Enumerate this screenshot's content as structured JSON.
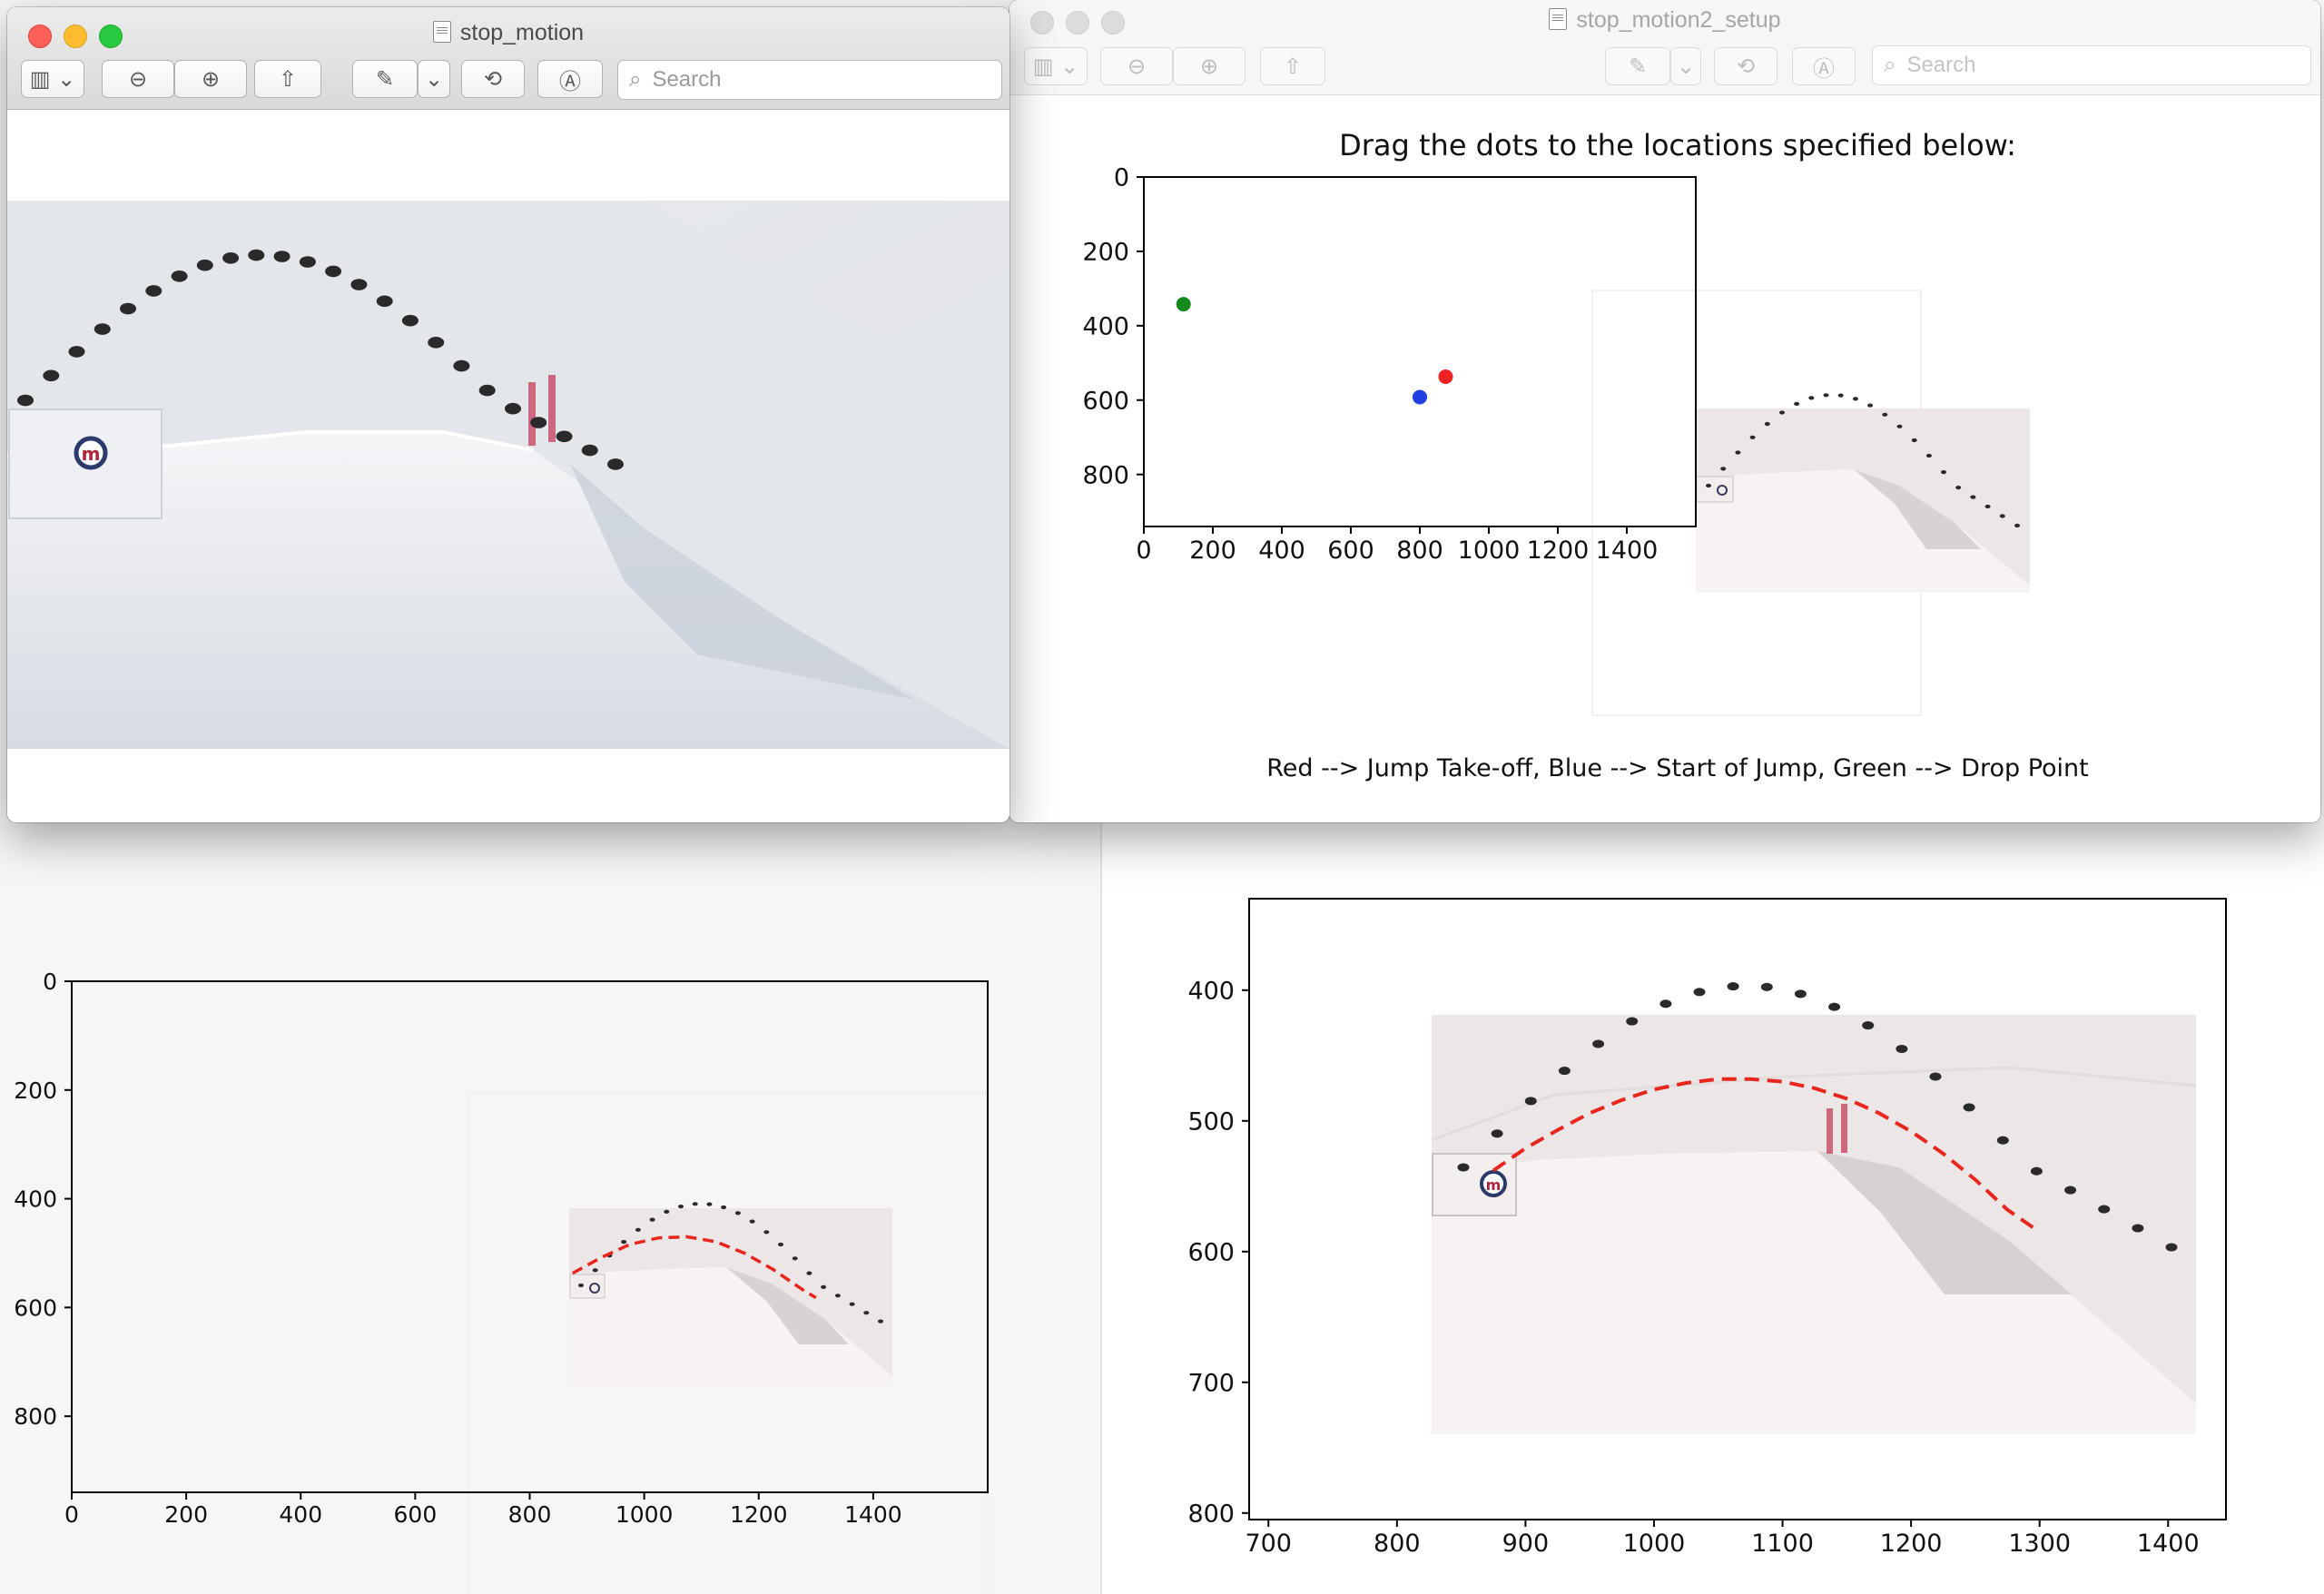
{
  "window_left": {
    "title": "stop_motion",
    "search_placeholder": "Search"
  },
  "window_right": {
    "title": "stop_motion2_setup",
    "search_placeholder": "Search"
  },
  "colors": {
    "dot_red": "#ee2222",
    "dot_blue": "#1f3fe0",
    "dot_green": "#138a1b",
    "fit_line": "#e8261e"
  },
  "chart_data": [
    {
      "type": "scatter",
      "title": "Drag the dots to the locations specified below:",
      "xlabel": "Red --> Jump Take-off, Blue --> Start of Jump, Green --> Drop Point",
      "ylabel": "",
      "x_ticks": [
        "0",
        "200",
        "400",
        "600",
        "800",
        "1000",
        "1200",
        "1400"
      ],
      "y_ticks": [
        "0",
        "200",
        "400",
        "600",
        "800"
      ],
      "xlim": [
        0,
        1600
      ],
      "ylim": [
        940,
        0
      ],
      "points": [
        {
          "name": "Red",
          "x": 875,
          "y": 537
        },
        {
          "name": "Blue",
          "x": 800,
          "y": 592
        },
        {
          "name": "Green",
          "x": 115,
          "y": 342
        }
      ]
    },
    {
      "type": "line",
      "title": "",
      "xlabel": "",
      "ylabel": "",
      "x_ticks": [
        "0",
        "200",
        "400",
        "600",
        "800",
        "1000",
        "1200",
        "1400"
      ],
      "y_ticks": [
        "0",
        "200",
        "400",
        "600",
        "800"
      ],
      "xlim": [
        0,
        1600
      ],
      "ylim": [
        940,
        0
      ],
      "series": [
        {
          "x": [
            875,
            925,
            975,
            1025,
            1075,
            1125,
            1175,
            1225,
            1275,
            1300
          ],
          "y": [
            537,
            508,
            484,
            472,
            470,
            479,
            500,
            530,
            566,
            582
          ]
        }
      ]
    },
    {
      "type": "line",
      "title": "",
      "xlabel": "",
      "ylabel": "",
      "x_ticks": [
        "700",
        "800",
        "900",
        "1000",
        "1100",
        "1200",
        "1300",
        "1400"
      ],
      "y_ticks": [
        "400",
        "500",
        "600",
        "700",
        "800"
      ],
      "xlim": [
        685,
        1445
      ],
      "ylim": [
        805,
        330
      ],
      "series": [
        {
          "x": [
            875,
            900,
            925,
            950,
            975,
            1000,
            1025,
            1050,
            1075,
            1100,
            1125,
            1150,
            1175,
            1200,
            1225,
            1250,
            1275,
            1300
          ],
          "y": [
            538,
            521,
            507,
            494,
            484,
            476,
            471,
            468,
            468,
            470,
            475,
            483,
            494,
            508,
            525,
            545,
            568,
            585
          ]
        }
      ]
    }
  ]
}
